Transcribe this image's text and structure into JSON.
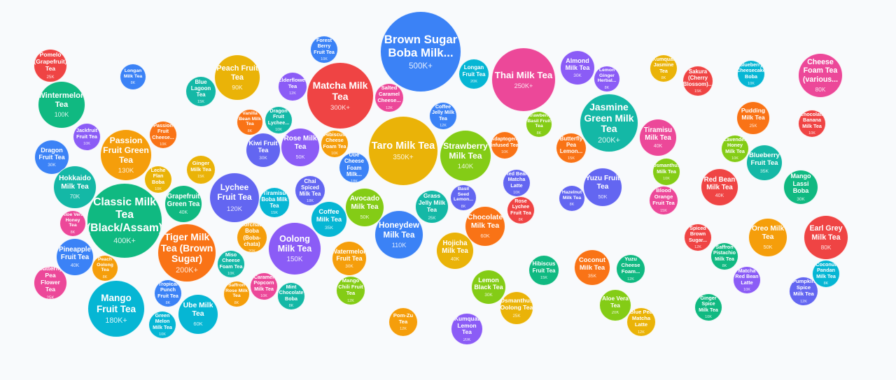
{
  "chart_data": {
    "type": "bubble",
    "title": "",
    "bubbles": [
      {
        "label": "Pomelo (Grapefruit) Tea",
        "value": "25K",
        "color": "#ef4444"
      },
      {
        "label": "Longan Milk Tea",
        "value": "8K",
        "color": "#3b82f6"
      },
      {
        "label": "Wintermelon Tea",
        "value": "100K",
        "color": "#10b981"
      },
      {
        "label": "Jackfruit Fruit Tea",
        "value": "10K",
        "color": "#8b5cf6"
      },
      {
        "label": "Dragon Fruit Tea",
        "value": "30K",
        "color": "#3b82f6"
      },
      {
        "label": "Passion Fruit Green Tea",
        "value": "130K",
        "color": "#f59e0b"
      },
      {
        "label": "Passion Fruit Cheese...",
        "value": "10K",
        "color": "#f97316"
      },
      {
        "label": "Leche Flan Boba",
        "value": "10K",
        "color": "#eab308"
      },
      {
        "label": "Ginger Milk Tea",
        "value": "15K",
        "color": "#eab308"
      },
      {
        "label": "Hokkaido Milk Tea",
        "value": "70K",
        "color": "#14b8a6"
      },
      {
        "label": "Blue Lagoon Tea",
        "value": "15K",
        "color": "#14b8a6"
      },
      {
        "label": "Peach Fruit Tea",
        "value": "90K",
        "color": "#eab308"
      },
      {
        "label": "Classic Milk Tea (Black/Assam)",
        "value": "400K+",
        "color": "#10b981"
      },
      {
        "label": "Grapefruit Green Tea",
        "value": "40K",
        "color": "#10b981"
      },
      {
        "label": "Aloe Vera Honey Tea",
        "value": "8K",
        "color": "#ec4899"
      },
      {
        "label": "Pineapple Fruit Tea",
        "value": "40K",
        "color": "#3b82f6"
      },
      {
        "label": "Peach Oolong Tea",
        "value": "8K",
        "color": "#f59e0b"
      },
      {
        "label": "Butterfly Pea Flower Tea",
        "value": "25K",
        "color": "#ec4899"
      },
      {
        "label": "Tiger Milk Tea (Brown Sugar)",
        "value": "200K+",
        "color": "#f97316"
      },
      {
        "label": "Mango Fruit Tea",
        "value": "180K+",
        "color": "#06b6d4"
      },
      {
        "label": "Tropical Punch Fruit Tea",
        "value": "8K",
        "color": "#3b82f6"
      },
      {
        "label": "Ube Milk Tea",
        "value": "60K",
        "color": "#06b6d4"
      },
      {
        "label": "Green Melon Milk Tea",
        "value": "10K",
        "color": "#06b6d4"
      },
      {
        "label": "Lychee Fruit Tea",
        "value": "120K",
        "color": "#6366f1"
      },
      {
        "label": "Forest Berry Fruit Tea",
        "value": "10K",
        "color": "#3b82f6"
      },
      {
        "label": "Elderflower Tea",
        "value": "12K",
        "color": "#8b5cf6"
      },
      {
        "label": "Matcha Milk Tea",
        "value": "300K+",
        "color": "#ef4444"
      },
      {
        "label": "Salted Caramel Cheese...",
        "value": "12K",
        "color": "#ec4899"
      },
      {
        "label": "Vanilla Bean Milk Tea",
        "value": "8K",
        "color": "#f97316"
      },
      {
        "label": "Dragon Fruit Lychee...",
        "value": "10K",
        "color": "#14b8a6"
      },
      {
        "label": "Kiwi Fruit Tea",
        "value": "30K",
        "color": "#6366f1"
      },
      {
        "label": "Rose Milk Tea",
        "value": "50K",
        "color": "#8b5cf6"
      },
      {
        "label": "Hibiscus Cheese Foam Tea",
        "value": "10K",
        "color": "#f59e0b"
      },
      {
        "label": "Ube Cheese Foam Milk...",
        "value": "18K",
        "color": "#3b82f6"
      },
      {
        "label": "Taro Milk Tea",
        "value": "350K+",
        "color": "#eab308"
      },
      {
        "label": "Brown Sugar Boba Milk...",
        "value": "500K+",
        "color": "#3b82f6"
      },
      {
        "label": "Chai Spiced Milk Tea",
        "value": "18K",
        "color": "#6366f1"
      },
      {
        "label": "Tiramisu Boba Milk Tea",
        "value": "15K",
        "color": "#06b6d4"
      },
      {
        "label": "Avocado Milk Tea",
        "value": "50K",
        "color": "#84cc16"
      },
      {
        "label": "Coffee Milk Tea",
        "value": "35K",
        "color": "#06b6d4"
      },
      {
        "label": "Horchata Boba (Boba-chata)",
        "value": "20K",
        "color": "#f59e0b"
      },
      {
        "label": "Oolong Milk Tea",
        "value": "150K",
        "color": "#8b5cf6"
      },
      {
        "label": "Honeydew Milk Tea",
        "value": "110K",
        "color": "#3b82f6"
      },
      {
        "label": "Miso Cheese Foam Tea",
        "value": "10K",
        "color": "#14b8a6"
      },
      {
        "label": "Watermelon Fruit Tea",
        "value": "30K",
        "color": "#f59e0b"
      },
      {
        "label": "Saffron Rose Milk Tea",
        "value": "8K",
        "color": "#f59e0b"
      },
      {
        "label": "Caramel Popcorn Milk Tea",
        "value": "10K",
        "color": "#ec4899"
      },
      {
        "label": "Mint Chocolate Boba",
        "value": "8K",
        "color": "#14b8a6"
      },
      {
        "label": "Mango Chili Fruit Tea",
        "value": "12K",
        "color": "#84cc16"
      },
      {
        "label": "Pom-Zu Tea",
        "value": "12K",
        "color": "#f59e0b"
      },
      {
        "label": "Longan Fruit Tea",
        "value": "20K",
        "color": "#06b6d4"
      },
      {
        "label": "Thai Milk Tea",
        "value": "250K+",
        "color": "#ec4899"
      },
      {
        "label": "Almond Milk Tea",
        "value": "30K",
        "color": "#8b5cf6"
      },
      {
        "label": "Lemon Ginger Herbal...",
        "value": "8K",
        "color": "#8b5cf6"
      },
      {
        "label": "Jasmine Green Milk Tea",
        "value": "200K+",
        "color": "#14b8a6"
      },
      {
        "label": "Coffee Jelly Milk Tea",
        "value": "12K",
        "color": "#3b82f6"
      },
      {
        "label": "Strawberry Basil Fruit Tea",
        "value": "8K",
        "color": "#84cc16"
      },
      {
        "label": "Strawberry Milk Tea",
        "value": "140K",
        "color": "#84cc16"
      },
      {
        "label": "Adaptogen-Infused Tea",
        "value": "10K",
        "color": "#f97316"
      },
      {
        "label": "Butterfly Pea Lemon...",
        "value": "15K",
        "color": "#f97316"
      },
      {
        "label": "Red Bean Matcha Latte",
        "value": "10K",
        "color": "#6366f1"
      },
      {
        "label": "Yuzu Fruit Tea",
        "value": "50K",
        "color": "#6366f1"
      },
      {
        "label": "Hazelnut Milk Tea",
        "value": "8K",
        "color": "#6366f1"
      },
      {
        "label": "Basil Seed Lemon...",
        "value": "8K",
        "color": "#6366f1"
      },
      {
        "label": "Grass Jelly Milk Tea",
        "value": "25K",
        "color": "#14b8a6"
      },
      {
        "label": "Rose Lychee Fruit Tea",
        "value": "8K",
        "color": "#ef4444"
      },
      {
        "label": "Chocolate Milk Tea",
        "value": "60K",
        "color": "#f97316"
      },
      {
        "label": "Hojicha Milk Tea",
        "value": "40K",
        "color": "#eab308"
      },
      {
        "label": "Hibiscus Fruit Tea",
        "value": "15K",
        "color": "#10b981"
      },
      {
        "label": "Coconut Milk Tea",
        "value": "35K",
        "color": "#f97316"
      },
      {
        "label": "Yuzu Cheese Foam...",
        "value": "12K",
        "color": "#10b981"
      },
      {
        "label": "Lemon Black Tea",
        "value": "30K",
        "color": "#84cc16"
      },
      {
        "label": "Osmanthus Oolong Tea",
        "value": "25K",
        "color": "#eab308"
      },
      {
        "label": "Aloe Vera Tea",
        "value": "20K",
        "color": "#84cc16"
      },
      {
        "label": "Blue Pea Matcha Latte",
        "value": "12K",
        "color": "#eab308"
      },
      {
        "label": "Kumquat Lemon Tea",
        "value": "20K",
        "color": "#8b5cf6"
      },
      {
        "label": "Kumquat Jasmine Tea",
        "value": "8K",
        "color": "#eab308"
      },
      {
        "label": "Sakura (Cherry Blossom)...",
        "value": "15K",
        "color": "#ef4444"
      },
      {
        "label": "Blueberry Cheesecake Boba",
        "value": "10K",
        "color": "#06b6d4"
      },
      {
        "label": "Cheese Foam Tea (various...",
        "value": "80K",
        "color": "#ec4899"
      },
      {
        "label": "Tiramisu Milk Tea",
        "value": "40K",
        "color": "#ec4899"
      },
      {
        "label": "Pudding Milk Tea",
        "value": "25K",
        "color": "#f97316"
      },
      {
        "label": "Chocolate Banana Milk Tea",
        "value": "10K",
        "color": "#ef4444"
      },
      {
        "label": "Lavender Honey Milk Tea",
        "value": "10K",
        "color": "#84cc16"
      },
      {
        "label": "Blueberry Fruit Tea",
        "value": "35K",
        "color": "#14b8a6"
      },
      {
        "label": "Osmanthus Milk Tea",
        "value": "10K",
        "color": "#84cc16"
      },
      {
        "label": "Red Bean Milk Tea",
        "value": "40K",
        "color": "#ef4444"
      },
      {
        "label": "Mango Lassi Boba",
        "value": "30K",
        "color": "#10b981"
      },
      {
        "label": "Blood Orange Fruit Tea",
        "value": "15K",
        "color": "#ec4899"
      },
      {
        "label": "Spiced Brown Sugar...",
        "value": "12K",
        "color": "#ef4444"
      },
      {
        "label": "Oreo Milk Tea",
        "value": "50K",
        "color": "#f59e0b"
      },
      {
        "label": "Earl Grey Milk Tea",
        "value": "80K",
        "color": "#ef4444"
      },
      {
        "label": "Saffron Pistachio Milk Tea",
        "value": "8K",
        "color": "#10b981"
      },
      {
        "label": "Matcha Red Bean Latte",
        "value": "10K",
        "color": "#8b5cf6"
      },
      {
        "label": "Coconut Pandan Milk Tea",
        "value": "8K",
        "color": "#06b6d4"
      },
      {
        "label": "Pumpkin Spice Milk Tea",
        "value": "12K",
        "color": "#6366f1"
      },
      {
        "label": "Ginger Spice Milk Tea",
        "value": "10K",
        "color": "#10b981"
      }
    ]
  }
}
